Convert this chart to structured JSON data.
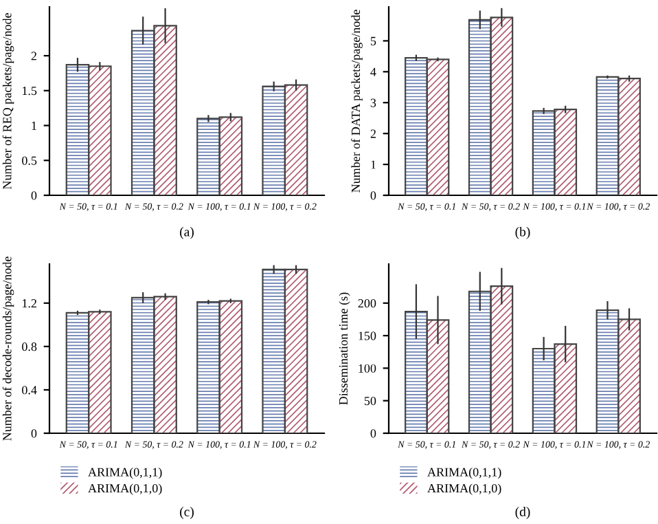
{
  "chart_data": [
    {
      "type": "bar",
      "xlabel": "(a)",
      "ylabel": "Number of REQ packets/page/node",
      "categories": [
        "N = 50, τ = 0.1",
        "N = 50, τ = 0.2",
        "N = 100, τ = 0.1",
        "N = 100, τ = 0.2"
      ],
      "ylim": [
        0,
        2.7
      ],
      "yticks": [
        0,
        0.5,
        1,
        1.5,
        2
      ],
      "grid": false,
      "legend": false,
      "series": [
        {
          "color": "#6a7fb0",
          "values": [
            1.87,
            2.36,
            1.1,
            1.56
          ],
          "errors": [
            0.1,
            0.2,
            0.05,
            0.07
          ]
        },
        {
          "color": "#b05a6e",
          "values": [
            1.85,
            2.43,
            1.12,
            1.58
          ],
          "errors": [
            0.06,
            0.25,
            0.06,
            0.08
          ]
        }
      ]
    },
    {
      "type": "bar",
      "xlabel": "(b)",
      "ylabel": "Number of DATA packets/page/node",
      "categories": [
        "N = 50, τ = 0.1",
        "N = 50, τ = 0.2",
        "N = 100, τ = 0.1",
        "N = 100, τ = 0.2"
      ],
      "ylim": [
        0,
        6.1
      ],
      "yticks": [
        0,
        1,
        2,
        3,
        4,
        5
      ],
      "grid": false,
      "legend": false,
      "series": [
        {
          "color": "#6a7fb0",
          "values": [
            4.45,
            5.68,
            2.73,
            3.83
          ],
          "errors": [
            0.1,
            0.3,
            0.1,
            0.05
          ]
        },
        {
          "color": "#b05a6e",
          "values": [
            4.4,
            5.76,
            2.78,
            3.78
          ],
          "errors": [
            0.06,
            0.3,
            0.12,
            0.1
          ]
        }
      ]
    },
    {
      "type": "bar",
      "xlabel": "(c)",
      "ylabel": "Number of decode-rounds/page/node",
      "categories": [
        "N = 50, τ = 0.1",
        "N = 50, τ = 0.2",
        "N = 100, τ = 0.1",
        "N = 100, τ = 0.2"
      ],
      "ylim": [
        0,
        1.56
      ],
      "yticks": [
        0,
        0.4,
        0.8,
        1.2
      ],
      "grid": false,
      "legend": "bottom",
      "series": [
        {
          "name": "ARIMA(0,1,1)",
          "color": "#6a7fb0",
          "values": [
            1.11,
            1.25,
            1.21,
            1.51
          ],
          "errors": [
            0.02,
            0.05,
            0.02,
            0.04
          ]
        },
        {
          "name": "ARIMA(0,1,0)",
          "color": "#b05a6e",
          "values": [
            1.12,
            1.26,
            1.22,
            1.51
          ],
          "errors": [
            0.02,
            0.03,
            0.02,
            0.04
          ]
        }
      ]
    },
    {
      "type": "bar",
      "xlabel": "(d)",
      "ylabel": "Dissemination time (s)",
      "categories": [
        "N = 50, τ = 0.1",
        "N = 50, τ = 0.2",
        "N = 100, τ = 0.1",
        "N = 100, τ = 0.2"
      ],
      "ylim": [
        0,
        260
      ],
      "yticks": [
        0,
        50,
        100,
        150,
        200
      ],
      "grid": false,
      "legend": "bottom",
      "series": [
        {
          "name": "ARIMA(0,1,1)",
          "color": "#6a7fb0",
          "values": [
            187,
            218,
            130,
            189
          ],
          "errors": [
            42,
            30,
            18,
            14
          ]
        },
        {
          "name": "ARIMA(0,1,0)",
          "color": "#b05a6e",
          "values": [
            174,
            226,
            137,
            175
          ],
          "errors": [
            37,
            28,
            28,
            17
          ]
        }
      ]
    }
  ]
}
